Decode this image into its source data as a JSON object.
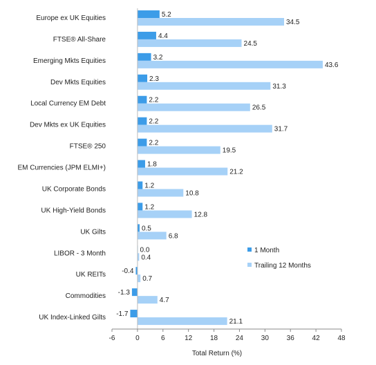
{
  "chart_data": {
    "type": "bar",
    "orientation": "horizontal",
    "categories": [
      "Europe ex UK Equities",
      "FTSE® All-Share",
      "Emerging Mkts Equities",
      "Dev Mkts Equities",
      "Local Currency EM Debt",
      "Dev Mkts ex UK Equities",
      "FTSE® 250",
      "EM Currencies (JPM ELMI+)",
      "UK Corporate Bonds",
      "UK High-Yield Bonds",
      "UK Gilts",
      "LIBOR - 3 Month",
      "UK REITs",
      "Commodities",
      "UK Index-Linked Gilts"
    ],
    "series": [
      {
        "name": "1 Month",
        "color": "#3c9ce8",
        "values": [
          5.2,
          4.4,
          3.2,
          2.3,
          2.2,
          2.2,
          2.2,
          1.8,
          1.2,
          1.2,
          0.5,
          0.0,
          -0.4,
          -1.3,
          -1.7
        ],
        "labels": [
          "5.2",
          "4.4",
          "3.2",
          "2.3",
          "2.2",
          "2.2",
          "2.2",
          "1.8",
          "1.2",
          "1.2",
          "0.5",
          "0.0",
          "-0.4",
          "-1.3",
          "-1.7"
        ]
      },
      {
        "name": "Trailing 12 Months",
        "color": "#a6d1f7",
        "values": [
          34.5,
          24.5,
          43.6,
          31.3,
          26.5,
          31.7,
          19.5,
          21.2,
          10.8,
          12.8,
          6.8,
          0.4,
          0.7,
          4.7,
          21.1
        ],
        "labels": [
          "34.5",
          "24.5",
          "43.6",
          "31.3",
          "26.5",
          "31.7",
          "19.5",
          "21.2",
          "10.8",
          "12.8",
          "6.8",
          "0.4",
          "0.7",
          "4.7",
          "21.1"
        ]
      }
    ],
    "xlabel": "Total Return (%)",
    "xlim": [
      -6,
      48
    ],
    "xticks": [
      "-6",
      "0",
      "6",
      "12",
      "18",
      "24",
      "30",
      "36",
      "42",
      "48"
    ],
    "xtick_values": [
      -6,
      0,
      6,
      12,
      18,
      24,
      30,
      36,
      42,
      48
    ],
    "grid": false,
    "legend_position": "right"
  }
}
